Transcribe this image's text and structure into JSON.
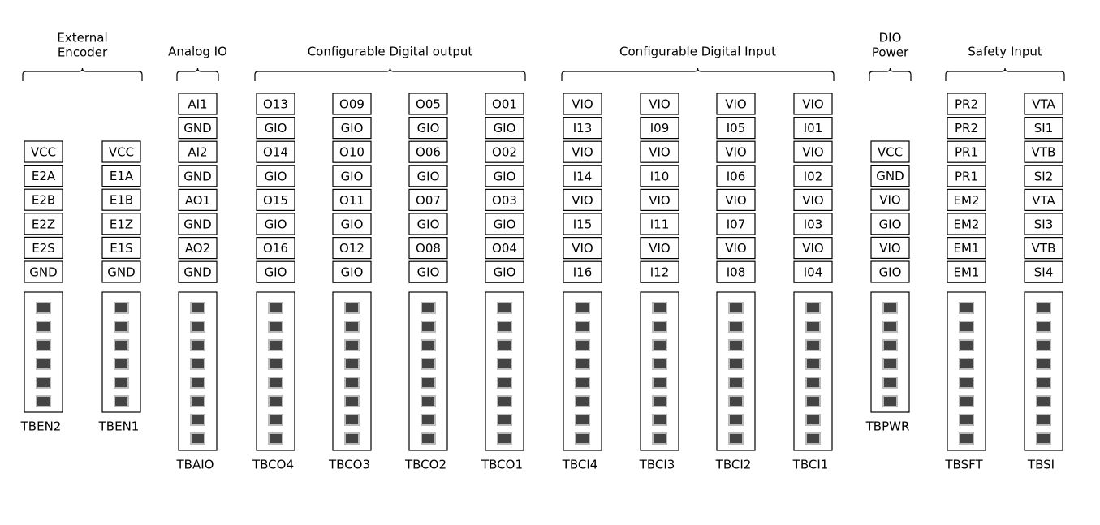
{
  "groups": [
    {
      "title_lines": [
        "External",
        "Encoder"
      ],
      "connectors": [
        {
          "name": "TBEN2",
          "pins": [
            "VCC",
            "E2A",
            "E2B",
            "E2Z",
            "E2S",
            "GND"
          ]
        },
        {
          "name": "TBEN1",
          "pins": [
            "VCC",
            "E1A",
            "E1B",
            "E1Z",
            "E1S",
            "GND"
          ]
        }
      ]
    },
    {
      "title_lines": [
        "Analog IO"
      ],
      "connectors": [
        {
          "name": "TBAIO",
          "pins": [
            "AI1",
            "GND",
            "AI2",
            "GND",
            "AO1",
            "GND",
            "AO2",
            "GND"
          ]
        }
      ]
    },
    {
      "title_lines": [
        "Configurable Digital output"
      ],
      "connectors": [
        {
          "name": "TBCO4",
          "pins": [
            "O13",
            "GIO",
            "O14",
            "GIO",
            "O15",
            "GIO",
            "O16",
            "GIO"
          ]
        },
        {
          "name": "TBCO3",
          "pins": [
            "O09",
            "GIO",
            "O10",
            "GIO",
            "O11",
            "GIO",
            "O12",
            "GIO"
          ]
        },
        {
          "name": "TBCO2",
          "pins": [
            "O05",
            "GIO",
            "O06",
            "GIO",
            "O07",
            "GIO",
            "O08",
            "GIO"
          ]
        },
        {
          "name": "TBCO1",
          "pins": [
            "O01",
            "GIO",
            "O02",
            "GIO",
            "O03",
            "GIO",
            "O04",
            "GIO"
          ]
        }
      ]
    },
    {
      "title_lines": [
        "Configurable Digital Input"
      ],
      "connectors": [
        {
          "name": "TBCI4",
          "pins": [
            "VIO",
            "I13",
            "VIO",
            "I14",
            "VIO",
            "I15",
            "VIO",
            "I16"
          ]
        },
        {
          "name": "TBCI3",
          "pins": [
            "VIO",
            "I09",
            "VIO",
            "I10",
            "VIO",
            "I11",
            "VIO",
            "I12"
          ]
        },
        {
          "name": "TBCI2",
          "pins": [
            "VIO",
            "I05",
            "VIO",
            "I06",
            "VIO",
            "I07",
            "VIO",
            "I08"
          ]
        },
        {
          "name": "TBCI1",
          "pins": [
            "VIO",
            "I01",
            "VIO",
            "I02",
            "VIO",
            "I03",
            "VIO",
            "I04"
          ]
        }
      ]
    },
    {
      "title_lines": [
        "DIO",
        "Power"
      ],
      "connectors": [
        {
          "name": "TBPWR",
          "pins": [
            "VCC",
            "GND",
            "VIO",
            "GIO",
            "VIO",
            "GIO"
          ]
        }
      ]
    },
    {
      "title_lines": [
        "Safety Input"
      ],
      "connectors": [
        {
          "name": "TBSFT",
          "pins": [
            "PR2",
            "PR2",
            "PR1",
            "PR1",
            "EM2",
            "EM2",
            "EM1",
            "EM1"
          ]
        },
        {
          "name": "TBSI",
          "pins": [
            "VTA",
            "SI1",
            "VTB",
            "SI2",
            "VTA",
            "SI3",
            "VTB",
            "SI4"
          ]
        }
      ]
    }
  ]
}
